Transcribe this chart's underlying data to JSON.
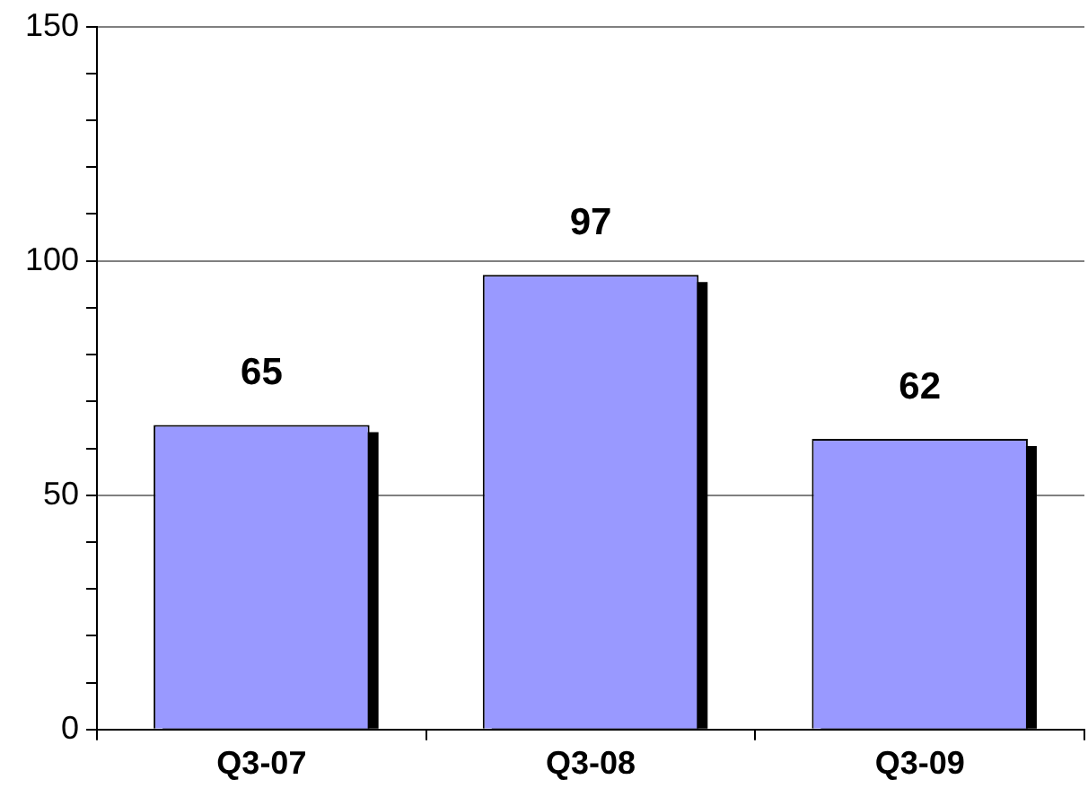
{
  "chart_data": {
    "type": "bar",
    "categories": [
      "Q3-07",
      "Q3-08",
      "Q3-09"
    ],
    "values": [
      65,
      97,
      62
    ],
    "color": "#9999ff",
    "ylim": [
      0,
      150
    ],
    "yticks": [
      0,
      {
        "value": 10,
        "label": null
      },
      {
        "value": 20,
        "label": null
      },
      {
        "value": 30,
        "label": null
      },
      {
        "value": 40,
        "label": null
      },
      50,
      {
        "value": 60,
        "label": null
      },
      {
        "value": 70,
        "label": null
      },
      {
        "value": 80,
        "label": null
      },
      {
        "value": 90,
        "label": null
      },
      100,
      {
        "value": 110,
        "label": null
      },
      {
        "value": 120,
        "label": null
      },
      {
        "value": 130,
        "label": null
      },
      {
        "value": 140,
        "label": null
      },
      150
    ],
    "grid": "y",
    "data_labels": true
  }
}
